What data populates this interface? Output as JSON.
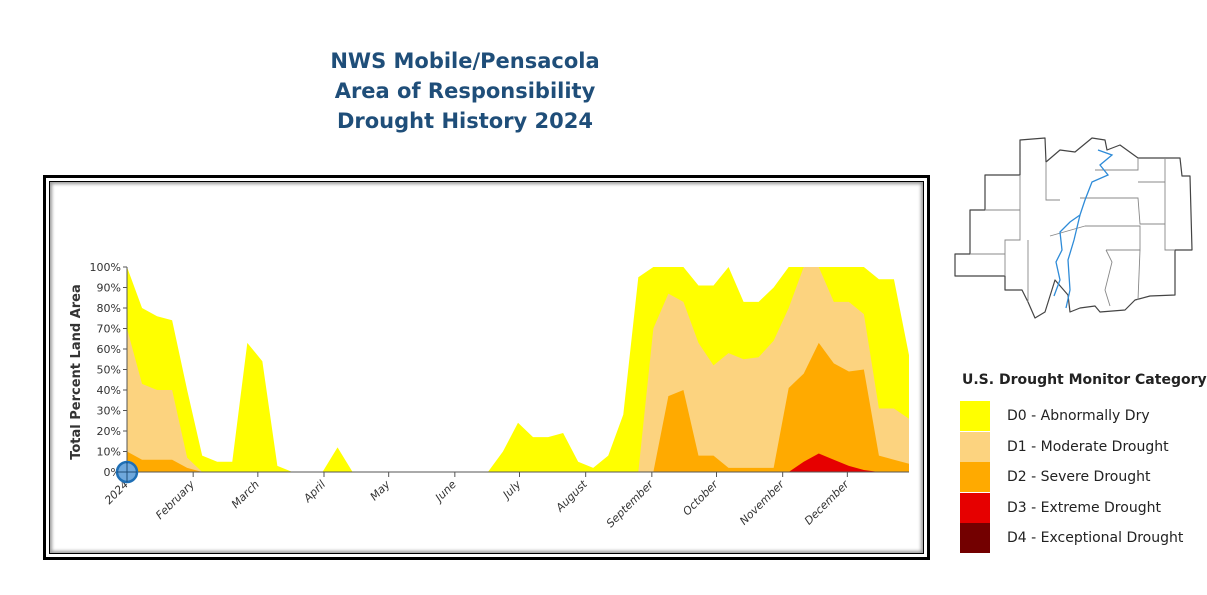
{
  "title": [
    "NWS Mobile/Pensacola",
    "Area of Responsibility",
    "Drought History 2024"
  ],
  "legend": {
    "title": "U.S. Drought Monitor Category",
    "items": [
      {
        "label": "D0 - Abnormally Dry",
        "color": "#ffff00"
      },
      {
        "label": "D1 - Moderate Drought",
        "color": "#fcd37f"
      },
      {
        "label": "D2 - Severe Drought",
        "color": "#ffaa00"
      },
      {
        "label": "D3 - Extreme Drought",
        "color": "#e60000"
      },
      {
        "label": "D4 - Exceptional Drought",
        "color": "#730000"
      }
    ]
  },
  "chart_data": {
    "type": "area",
    "ylabel": "Total Percent Land Area",
    "xlabel": "",
    "ylim": [
      0,
      100
    ],
    "y_ticks": [
      "100%",
      "90%",
      "80%",
      "70%",
      "60%",
      "50%",
      "40%",
      "30%",
      "20%",
      "10%",
      "0%"
    ],
    "x_ticks": [
      {
        "label": "2024",
        "week": 0
      },
      {
        "label": "February",
        "week": 4.4
      },
      {
        "label": "March",
        "week": 8.7
      },
      {
        "label": "April",
        "week": 13.1
      },
      {
        "label": "May",
        "week": 17.4
      },
      {
        "label": "June",
        "week": 21.8
      },
      {
        "label": "July",
        "week": 26.1
      },
      {
        "label": "August",
        "week": 30.5
      },
      {
        "label": "September",
        "week": 34.9
      },
      {
        "label": "October",
        "week": 39.2
      },
      {
        "label": "November",
        "week": 43.6
      },
      {
        "label": "December",
        "week": 47.9
      }
    ],
    "weekly_dates": [
      "2024-01-02",
      "2024-01-09",
      "2024-01-16",
      "2024-01-23",
      "2024-01-30",
      "2024-02-06",
      "2024-02-13",
      "2024-02-20",
      "2024-02-27",
      "2024-03-05",
      "2024-03-12",
      "2024-03-19",
      "2024-03-26",
      "2024-04-02",
      "2024-04-09",
      "2024-04-16",
      "2024-04-23",
      "2024-04-30",
      "2024-05-07",
      "2024-05-14",
      "2024-05-21",
      "2024-05-28",
      "2024-06-04",
      "2024-06-11",
      "2024-06-18",
      "2024-06-25",
      "2024-07-02",
      "2024-07-09",
      "2024-07-16",
      "2024-07-23",
      "2024-07-30",
      "2024-08-06",
      "2024-08-13",
      "2024-08-20",
      "2024-08-27",
      "2024-09-03",
      "2024-09-10",
      "2024-09-17",
      "2024-09-24",
      "2024-10-01",
      "2024-10-08",
      "2024-10-15",
      "2024-10-22",
      "2024-10-29",
      "2024-11-05",
      "2024-11-12",
      "2024-11-19",
      "2024-11-26",
      "2024-12-03",
      "2024-12-10",
      "2024-12-17",
      "2024-12-24",
      "2024-12-31"
    ],
    "series": [
      {
        "name": "D0 - Abnormally Dry",
        "color": "#ffff00",
        "values": [
          100,
          80,
          76,
          74,
          40,
          8,
          5,
          5,
          63,
          54,
          3,
          0,
          0,
          0,
          12,
          0,
          0,
          0,
          0,
          0,
          0,
          0,
          0,
          0,
          0,
          10,
          24,
          17,
          17,
          19,
          5,
          2,
          8,
          28,
          95,
          100,
          100,
          100,
          91,
          91,
          100,
          83,
          83,
          90,
          100,
          100,
          100,
          100,
          100,
          100,
          94,
          94,
          57
        ]
      },
      {
        "name": "D1 - Moderate Drought",
        "color": "#fcd37f",
        "values": [
          70,
          43,
          40,
          40,
          7,
          0,
          0,
          0,
          0,
          0,
          0,
          0,
          0,
          0,
          0,
          0,
          0,
          0,
          0,
          0,
          0,
          0,
          0,
          0,
          0,
          0,
          0,
          0,
          0,
          0,
          0,
          0,
          0,
          0,
          0,
          70,
          87,
          83,
          63,
          52,
          58,
          55,
          56,
          64,
          80,
          100,
          100,
          83,
          83,
          77,
          31,
          31,
          26
        ]
      },
      {
        "name": "D2 - Severe Drought",
        "color": "#ffaa00",
        "values": [
          10,
          6,
          6,
          6,
          2,
          0,
          0,
          0,
          0,
          0,
          0,
          0,
          0,
          0,
          0,
          0,
          0,
          0,
          0,
          0,
          0,
          0,
          0,
          0,
          0,
          0,
          0,
          0,
          0,
          0,
          0,
          0,
          0,
          0,
          0,
          0,
          37,
          40,
          8,
          8,
          2,
          2,
          2,
          2,
          41,
          48,
          63,
          53,
          49,
          50,
          8,
          6,
          4
        ]
      },
      {
        "name": "D3 - Extreme Drought",
        "color": "#e60000",
        "values": [
          0,
          0,
          0,
          0,
          0,
          0,
          0,
          0,
          0,
          0,
          0,
          0,
          0,
          0,
          0,
          0,
          0,
          0,
          0,
          0,
          0,
          0,
          0,
          0,
          0,
          0,
          0,
          0,
          0,
          0,
          0,
          0,
          0,
          0,
          0,
          0,
          0,
          0,
          0,
          0,
          0,
          0,
          0,
          0,
          0,
          5,
          9,
          6,
          3,
          1,
          0,
          0,
          0
        ]
      },
      {
        "name": "D4 - Exceptional Drought",
        "color": "#730000",
        "values": [
          0,
          0,
          0,
          0,
          0,
          0,
          0,
          0,
          0,
          0,
          0,
          0,
          0,
          0,
          0,
          0,
          0,
          0,
          0,
          0,
          0,
          0,
          0,
          0,
          0,
          0,
          0,
          0,
          0,
          0,
          0,
          0,
          0,
          0,
          0,
          0,
          0,
          0,
          0,
          0,
          0,
          0,
          0,
          0,
          0,
          0,
          0,
          0,
          0,
          0,
          0,
          0,
          0
        ]
      }
    ],
    "grid": false,
    "legend_placement": "right"
  }
}
